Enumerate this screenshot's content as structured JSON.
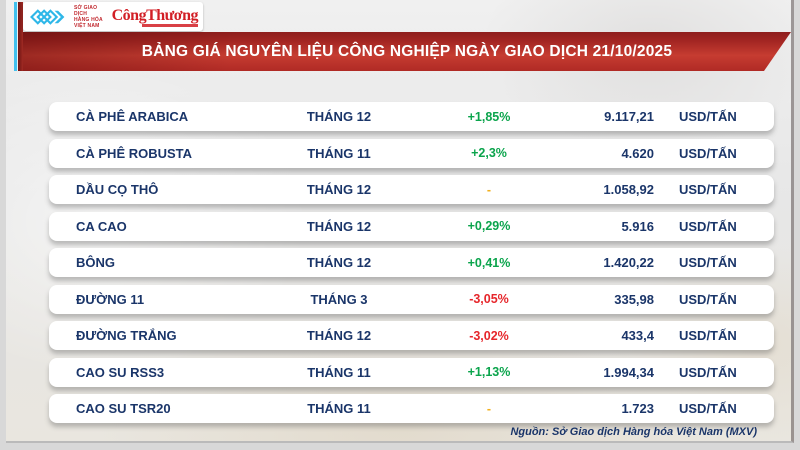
{
  "header": {
    "logo": {
      "mxv_lines": [
        "SỞ GIAO DỊCH",
        "HÀNG HÓA",
        "VIỆT NAM"
      ],
      "congthuong": "CôngThương"
    },
    "title": "BẢNG GIÁ NGUYÊN LIỆU CÔNG NGHIỆP NGÀY GIAO DỊCH 21/10/2025"
  },
  "table": {
    "rows": [
      {
        "name": "CÀ PHÊ ARABICA",
        "month": "THÁNG 12",
        "change": "+1,85%",
        "change_dir": "up",
        "price": "9.117,21",
        "unit": "USD/TẤN"
      },
      {
        "name": "CÀ PHÊ ROBUSTA",
        "month": "THÁNG 11",
        "change": "+2,3%",
        "change_dir": "up",
        "price": "4.620",
        "unit": "USD/TẤN"
      },
      {
        "name": "DẦU CỌ THÔ",
        "month": "THÁNG 12",
        "change": "-",
        "change_dir": "flat",
        "price": "1.058,92",
        "unit": "USD/TẤN"
      },
      {
        "name": "CA CAO",
        "month": "THÁNG 12",
        "change": "+0,29%",
        "change_dir": "up",
        "price": "5.916",
        "unit": "USD/TẤN"
      },
      {
        "name": "BÔNG",
        "month": "THÁNG 12",
        "change": "+0,41%",
        "change_dir": "up",
        "price": "1.420,22",
        "unit": "USD/TẤN"
      },
      {
        "name": "ĐƯỜNG 11",
        "month": "THÁNG 3",
        "change": "-3,05%",
        "change_dir": "down",
        "price": "335,98",
        "unit": "USD/TẤN"
      },
      {
        "name": "ĐƯỜNG TRẮNG",
        "month": "THÁNG 12",
        "change": "-3,02%",
        "change_dir": "down",
        "price": "433,4",
        "unit": "USD/TẤN"
      },
      {
        "name": "CAO SU RSS3",
        "month": "THÁNG 11",
        "change": "+1,13%",
        "change_dir": "up",
        "price": "1.994,34",
        "unit": "USD/TẤN"
      },
      {
        "name": "CAO SU TSR20",
        "month": "THÁNG 11",
        "change": "-",
        "change_dir": "flat",
        "price": "1.723",
        "unit": "USD/TẤN"
      }
    ]
  },
  "footer": {
    "source": "Nguồn: Sở Giao dịch Hàng hóa Việt Nam (MXV)"
  },
  "colors": {
    "navy_text": "#1a3569",
    "up_green": "#0ba44c",
    "down_red": "#e6262b",
    "flat_yellow": "#f2b01e",
    "banner_red": "#c63c31",
    "logo_red": "#c1272d",
    "logo_blue": "#2eb7e8"
  },
  "chart_data": {
    "type": "table",
    "title": "BẢNG GIÁ NGUYÊN LIỆU CÔNG NGHIỆP NGÀY GIAO DỊCH 21/10/2025",
    "columns": [
      "commodity",
      "contract_month",
      "change_pct",
      "price",
      "unit"
    ],
    "rows": [
      [
        "CÀ PHÊ ARABICA",
        "THÁNG 12",
        "+1,85%",
        "9.117,21",
        "USD/TẤN"
      ],
      [
        "CÀ PHÊ ROBUSTA",
        "THÁNG 11",
        "+2,3%",
        "4.620",
        "USD/TẤN"
      ],
      [
        "DẦU CỌ THÔ",
        "THÁNG 12",
        "-",
        "1.058,92",
        "USD/TẤN"
      ],
      [
        "CA CAO",
        "THÁNG 12",
        "+0,29%",
        "5.916",
        "USD/TẤN"
      ],
      [
        "BÔNG",
        "THÁNG 12",
        "+0,41%",
        "1.420,22",
        "USD/TẤN"
      ],
      [
        "ĐƯỜNG 11",
        "THÁNG 3",
        "-3,05%",
        "335,98",
        "USD/TẤN"
      ],
      [
        "ĐƯỜNG TRẮNG",
        "THÁNG 12",
        "-3,02%",
        "433,4",
        "USD/TẤN"
      ],
      [
        "CAO SU RSS3",
        "THÁNG 11",
        "+1,13%",
        "1.994,34",
        "USD/TẤN"
      ],
      [
        "CAO SU TSR20",
        "THÁNG 11",
        "-",
        "1.723",
        "USD/TẤN"
      ]
    ],
    "source": "Nguồn: Sở Giao dịch Hàng hóa Việt Nam (MXV)"
  }
}
